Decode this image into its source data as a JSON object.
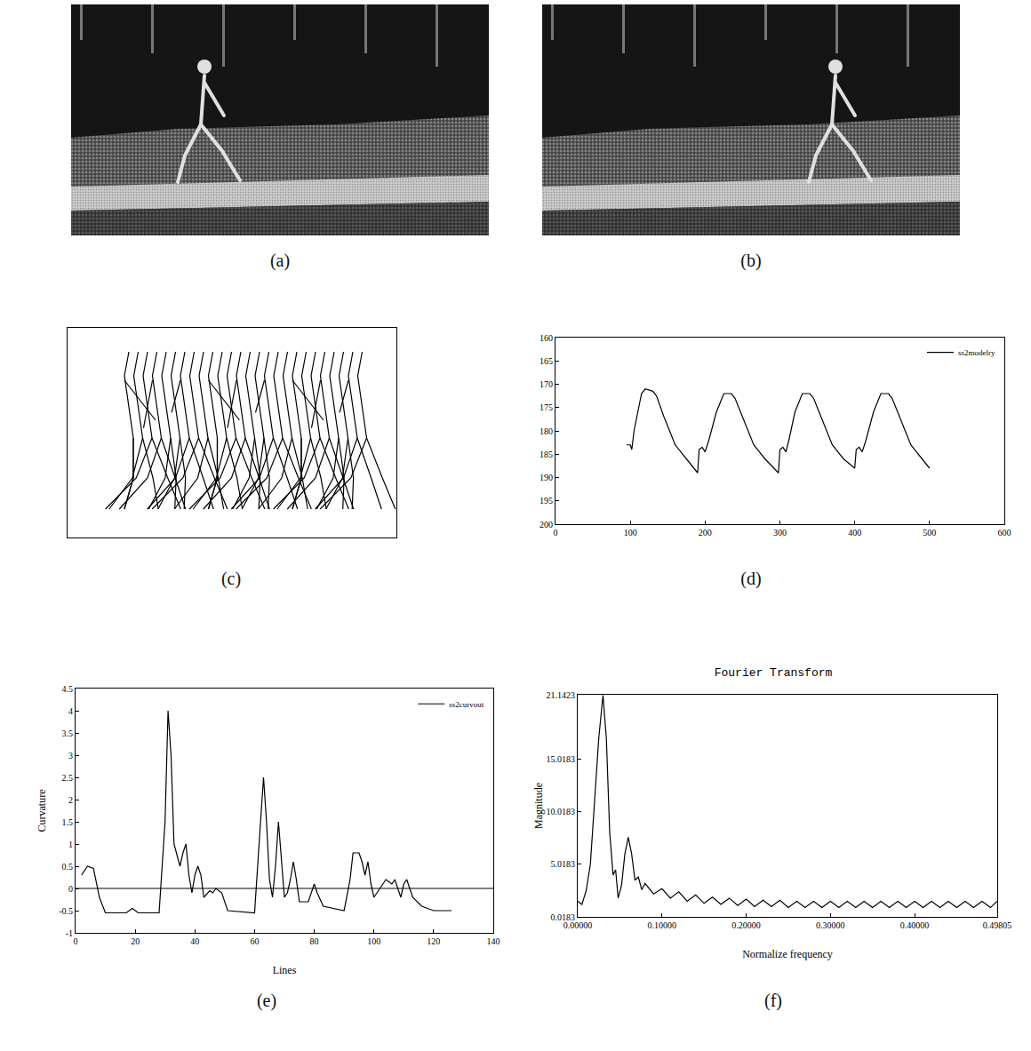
{
  "panel_labels": [
    "(a)",
    "(b)",
    "(c)",
    "(d)",
    "(e)",
    "(f)"
  ],
  "chart_data": [
    {
      "type": "line",
      "x": [
        95,
        100,
        102,
        105,
        115,
        120,
        130,
        135,
        145,
        160,
        175,
        190,
        192,
        196,
        200,
        205,
        215,
        225,
        235,
        240,
        250,
        265,
        280,
        298,
        300,
        304,
        308,
        312,
        320,
        330,
        340,
        345,
        355,
        370,
        385,
        400,
        402,
        406,
        410,
        415,
        425,
        435,
        445,
        450,
        460,
        475,
        490,
        500
      ],
      "series": [
        {
          "name": "ss2modelry",
          "color": "#000000",
          "values": [
            183,
            183,
            184,
            180,
            172,
            171,
            171.5,
            172.5,
            177,
            183,
            186,
            189,
            184,
            183.5,
            184.5,
            182,
            176,
            172,
            172,
            173,
            177,
            183,
            186,
            189,
            184,
            183.5,
            184.5,
            182,
            176,
            172,
            172,
            173,
            177,
            183,
            186,
            188,
            184,
            183.5,
            184.5,
            182,
            176,
            172,
            172,
            173,
            177,
            183,
            186,
            188
          ]
        }
      ],
      "xlim": [
        0,
        600
      ],
      "xticks": [
        0,
        100,
        200,
        300,
        400,
        500,
        600
      ],
      "ylim": [
        200,
        160
      ],
      "yticks": [
        160,
        165,
        170,
        175,
        180,
        185,
        190,
        195,
        200
      ],
      "legend": "upper right"
    },
    {
      "type": "line",
      "x_label": "Lines",
      "y_label": "Curvature",
      "x": [
        2,
        4,
        6,
        8,
        10,
        17,
        19,
        21,
        28,
        30,
        31,
        32,
        33,
        35,
        36,
        37,
        38,
        39,
        40,
        41,
        42,
        43,
        45,
        46,
        47,
        49,
        51,
        60,
        62,
        63,
        64,
        65,
        66,
        67,
        68,
        69,
        70,
        71,
        72,
        73,
        74,
        75,
        78,
        80,
        81,
        83,
        90,
        92,
        93,
        95,
        96,
        97,
        98,
        99,
        100,
        102,
        104,
        106,
        107,
        109,
        110,
        111,
        113,
        116,
        120,
        126
      ],
      "series": [
        {
          "name": "ss2curvout",
          "color": "#000000",
          "values": [
            0.3,
            0.5,
            0.45,
            -0.2,
            -0.55,
            -0.55,
            -0.45,
            -0.55,
            -0.55,
            1.5,
            4.0,
            3.0,
            1.0,
            0.5,
            0.8,
            1.0,
            0.3,
            -0.1,
            0.3,
            0.5,
            0.3,
            -0.2,
            -0.05,
            -0.1,
            0.0,
            -0.1,
            -0.5,
            -0.55,
            1.5,
            2.5,
            1.5,
            0.2,
            -0.2,
            0.5,
            1.5,
            0.7,
            -0.2,
            -0.1,
            0.2,
            0.6,
            0.2,
            -0.3,
            -0.3,
            0.1,
            -0.1,
            -0.4,
            -0.5,
            0.2,
            0.8,
            0.8,
            0.6,
            0.3,
            0.6,
            0.1,
            -0.2,
            0,
            0.2,
            0.1,
            0.2,
            -0.2,
            0.1,
            0.2,
            -0.2,
            -0.4,
            -0.5,
            -0.5
          ]
        }
      ],
      "reference_line": 0,
      "xlim": [
        0,
        140
      ],
      "xticks": [
        0,
        20,
        40,
        60,
        80,
        100,
        120,
        140
      ],
      "ylim": [
        -1,
        4.5
      ],
      "yticks": [
        -1,
        -0.5,
        0,
        0.5,
        1,
        1.5,
        2,
        2.5,
        3,
        3.5,
        4,
        4.5
      ],
      "legend": "upper right"
    },
    {
      "type": "line",
      "title": "Fourier Transform",
      "x_label": "Normalize frequency",
      "y_label": "Magnitude",
      "x": [
        0,
        0.005,
        0.01,
        0.015,
        0.02,
        0.025,
        0.03,
        0.034,
        0.038,
        0.042,
        0.045,
        0.048,
        0.052,
        0.056,
        0.06,
        0.064,
        0.068,
        0.072,
        0.076,
        0.08,
        0.09,
        0.1,
        0.11,
        0.12,
        0.13,
        0.14,
        0.15,
        0.16,
        0.17,
        0.18,
        0.19,
        0.2,
        0.21,
        0.22,
        0.23,
        0.24,
        0.25,
        0.26,
        0.27,
        0.28,
        0.29,
        0.3,
        0.31,
        0.32,
        0.33,
        0.34,
        0.35,
        0.36,
        0.37,
        0.38,
        0.39,
        0.4,
        0.41,
        0.42,
        0.43,
        0.44,
        0.45,
        0.46,
        0.47,
        0.48,
        0.49,
        0.498
      ],
      "series": [
        {
          "name": "Magnitude",
          "color": "#000000",
          "values": [
            1.5,
            1.2,
            2.5,
            5,
            11,
            17,
            21.1,
            17,
            8,
            4,
            4.5,
            1.8,
            3,
            6,
            7.6,
            6,
            3.5,
            3.8,
            2.6,
            3.2,
            2.2,
            2.7,
            1.8,
            2.4,
            1.5,
            2.1,
            1.3,
            1.9,
            1.2,
            1.8,
            1.1,
            1.7,
            1.0,
            1.6,
            1.0,
            1.6,
            0.9,
            1.5,
            0.9,
            1.5,
            0.9,
            1.5,
            0.9,
            1.5,
            0.9,
            1.5,
            0.9,
            1.5,
            0.9,
            1.5,
            0.9,
            1.5,
            0.9,
            1.5,
            0.9,
            1.5,
            0.9,
            1.5,
            0.9,
            1.5,
            0.9,
            1.5
          ]
        }
      ],
      "xlim": [
        0,
        0.49805
      ],
      "xticks": [
        {
          "value": 0,
          "label": "0.00000"
        },
        {
          "value": 0.1,
          "label": "0.10000"
        },
        {
          "value": 0.2,
          "label": "0.20000"
        },
        {
          "value": 0.3,
          "label": "0.30000"
        },
        {
          "value": 0.4,
          "label": "0.40000"
        },
        0.49805
      ],
      "ylim": [
        0.0183,
        21.1423
      ],
      "yticks": [
        0.0183,
        5.0183,
        10.0183,
        15.0183,
        21.1423
      ]
    }
  ]
}
